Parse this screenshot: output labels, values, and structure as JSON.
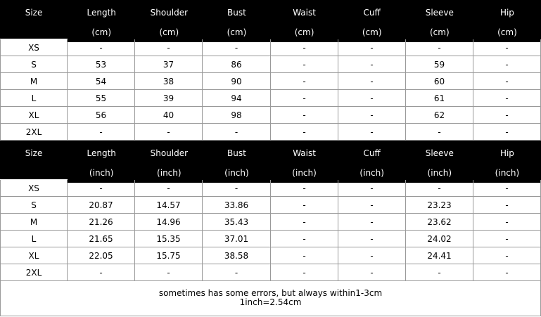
{
  "tables": [
    {
      "columns": [
        "Size",
        "Length",
        "Shoulder",
        "Bust",
        "Waist",
        "Cuff",
        "Sleeve",
        "Hip"
      ],
      "units": [
        "(cm)",
        "(cm)",
        "(cm)",
        "(cm)",
        "(cm)",
        "(cm)",
        "(cm)"
      ],
      "rows": [
        [
          "XS",
          "-",
          "-",
          "-",
          "-",
          "-",
          "-",
          "-"
        ],
        [
          "S",
          "53",
          "37",
          "86",
          "-",
          "-",
          "59",
          "-"
        ],
        [
          "M",
          "54",
          "38",
          "90",
          "-",
          "-",
          "60",
          "-"
        ],
        [
          "L",
          "55",
          "39",
          "94",
          "-",
          "-",
          "61",
          "-"
        ],
        [
          "XL",
          "56",
          "40",
          "98",
          "-",
          "-",
          "62",
          "-"
        ],
        [
          "2XL",
          "-",
          "-",
          "-",
          "-",
          "-",
          "-",
          "-"
        ]
      ]
    },
    {
      "columns": [
        "Size",
        "Length",
        "Shoulder",
        "Bust",
        "Waist",
        "Cuff",
        "Sleeve",
        "Hip"
      ],
      "units": [
        "(inch)",
        "(inch)",
        "(inch)",
        "(inch)",
        "(inch)",
        "(inch)",
        "(inch)"
      ],
      "rows": [
        [
          "XS",
          "-",
          "-",
          "-",
          "-",
          "-",
          "-",
          "-"
        ],
        [
          "S",
          "20.87",
          "14.57",
          "33.86",
          "-",
          "-",
          "23.23",
          "-"
        ],
        [
          "M",
          "21.26",
          "14.96",
          "35.43",
          "-",
          "-",
          "23.62",
          "-"
        ],
        [
          "L",
          "21.65",
          "15.35",
          "37.01",
          "-",
          "-",
          "24.02",
          "-"
        ],
        [
          "XL",
          "22.05",
          "15.75",
          "38.58",
          "-",
          "-",
          "24.41",
          "-"
        ],
        [
          "2XL",
          "-",
          "-",
          "-",
          "-",
          "-",
          "-",
          "-"
        ]
      ]
    }
  ],
  "footer": [
    "sometimes has some errors, but always within1-3cm",
    "1inch=2.54cm"
  ]
}
